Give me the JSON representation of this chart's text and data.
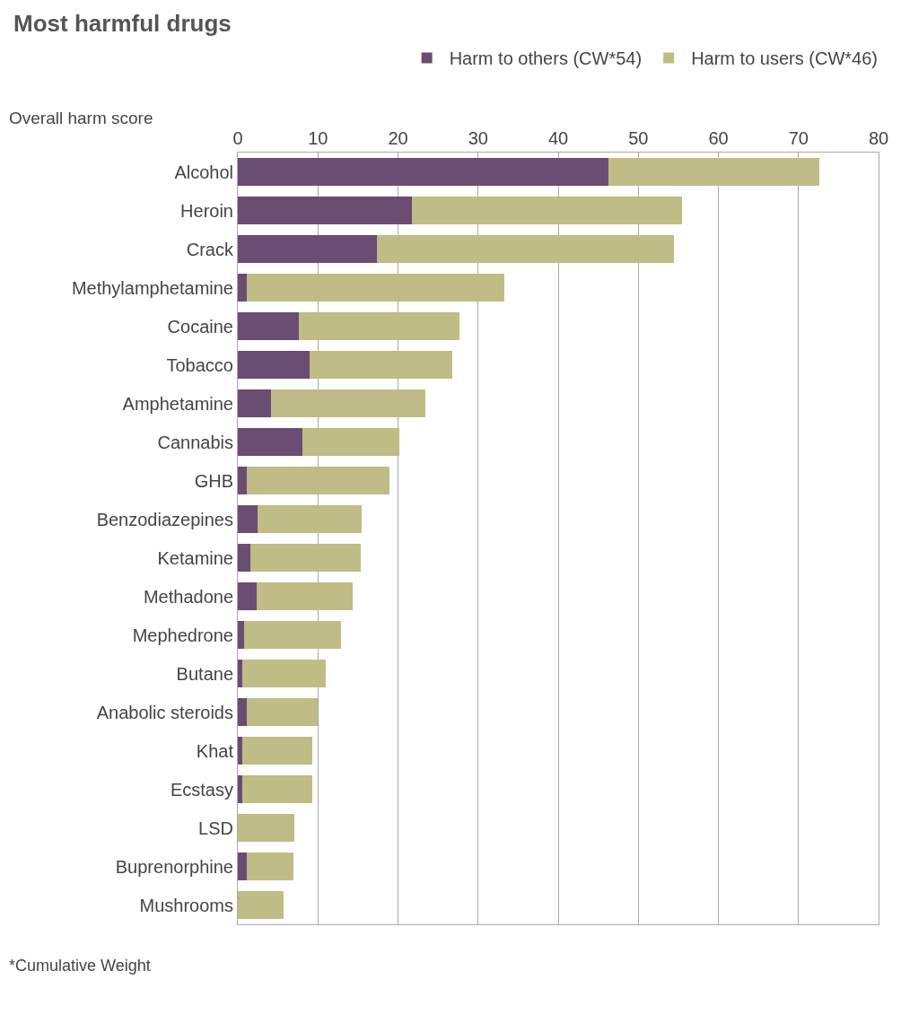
{
  "chart_data": {
    "type": "bar",
    "orientation": "horizontal",
    "stacked": true,
    "title": "Most harmful drugs",
    "xlabel": "Overall harm score",
    "categories": [
      "Alcohol",
      "Heroin",
      "Crack",
      "Methylamphetamine",
      "Cocaine",
      "Tobacco",
      "Amphetamine",
      "Cannabis",
      "GHB",
      "Benzodiazepines",
      "Ketamine",
      "Methadone",
      "Mephedrone",
      "Butane",
      "Anabolic steroids",
      "Khat",
      "Ecstasy",
      "LSD",
      "Buprenorphine",
      "Mushrooms"
    ],
    "series": [
      {
        "name": "Harm to others (CW*54)",
        "color": "#6b4c72",
        "values": [
          46.3,
          21.7,
          17.4,
          1.1,
          7.6,
          9.0,
          4.2,
          8.1,
          1.1,
          2.5,
          1.6,
          2.3,
          0.8,
          0.6,
          1.1,
          0.6,
          0.6,
          0,
          1.1,
          0
        ]
      },
      {
        "name": "Harm to users (CW*46)",
        "color": "#bfbc85",
        "values": [
          26.3,
          33.8,
          37.1,
          32.2,
          20.1,
          17.8,
          19.2,
          12.1,
          17.8,
          13.0,
          13.7,
          12.0,
          12.1,
          10.4,
          8.9,
          8.7,
          8.7,
          7.1,
          5.8,
          5.7
        ]
      }
    ],
    "xlim": [
      0,
      80
    ],
    "xticks": [
      0,
      10,
      20,
      30,
      40,
      50,
      60,
      70,
      80
    ],
    "grid": "x",
    "legend": "top",
    "annotations": [
      "*Cumulative Weight"
    ]
  }
}
